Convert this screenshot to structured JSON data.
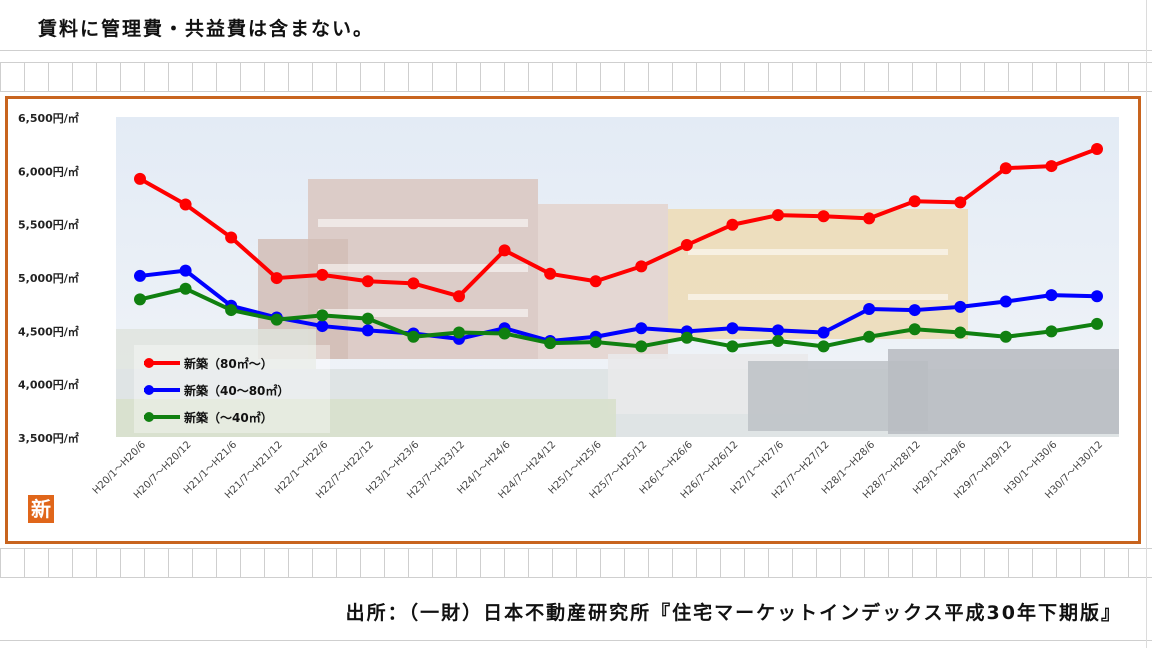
{
  "header_note": "賃料に管理費・共益費は含まない。",
  "source_note": "出所：（一財）日本不動産研究所『住宅マーケットインデックス平成30年下期版』",
  "logo_char": "新",
  "chart_data": {
    "type": "line",
    "title": "",
    "xlabel": "",
    "ylabel": "",
    "ylim": [
      3500,
      6500
    ],
    "yticks": [
      3500,
      4000,
      4500,
      5000,
      5500,
      6000,
      6500
    ],
    "ytick_labels": [
      "3,500円/㎡",
      "4,000円/㎡",
      "4,500円/㎡",
      "5,000円/㎡",
      "5,500円/㎡",
      "6,000円/㎡",
      "6,500円/㎡"
    ],
    "grid": false,
    "legend_position": "bottom-left",
    "categories": [
      "H20/1～H20/6",
      "H20/7～H20/12",
      "H21/1～H21/6",
      "H21/7～H21/12",
      "H22/1～H22/6",
      "H22/7～H22/12",
      "H23/1～H23/6",
      "H23/7～H23/12",
      "H24/1～H24/6",
      "H24/7～H24/12",
      "H25/1～H25/6",
      "H25/7～H25/12",
      "H26/1～H26/6",
      "H26/7～H26/12",
      "H27/1～H27/6",
      "H27/7～H27/12",
      "H28/1～H28/6",
      "H28/7～H28/12",
      "H29/1～H29/6",
      "H29/7～H29/12",
      "H30/1～H30/6",
      "H30/7～H30/12"
    ],
    "series": [
      {
        "name": "新築（80㎡～）",
        "color": "#ff0000",
        "values": [
          5920,
          5680,
          5370,
          4990,
          5020,
          4960,
          4940,
          4820,
          5250,
          5030,
          4960,
          5100,
          5300,
          5490,
          5580,
          5570,
          5550,
          5710,
          5700,
          6020,
          6040,
          6200
        ]
      },
      {
        "name": "新築（40～80㎡）",
        "color": "#0000ff",
        "values": [
          5010,
          5060,
          4730,
          4620,
          4540,
          4500,
          4470,
          4420,
          4520,
          4400,
          4440,
          4520,
          4490,
          4520,
          4500,
          4480,
          4700,
          4690,
          4720,
          4770,
          4830,
          4820
        ]
      },
      {
        "name": "新築（～40㎡）",
        "color": "#108010",
        "values": [
          4790,
          4890,
          4690,
          4600,
          4640,
          4610,
          4440,
          4480,
          4470,
          4380,
          4390,
          4350,
          4430,
          4350,
          4400,
          4350,
          4440,
          4510,
          4480,
          4440,
          4490,
          4560
        ]
      }
    ]
  }
}
